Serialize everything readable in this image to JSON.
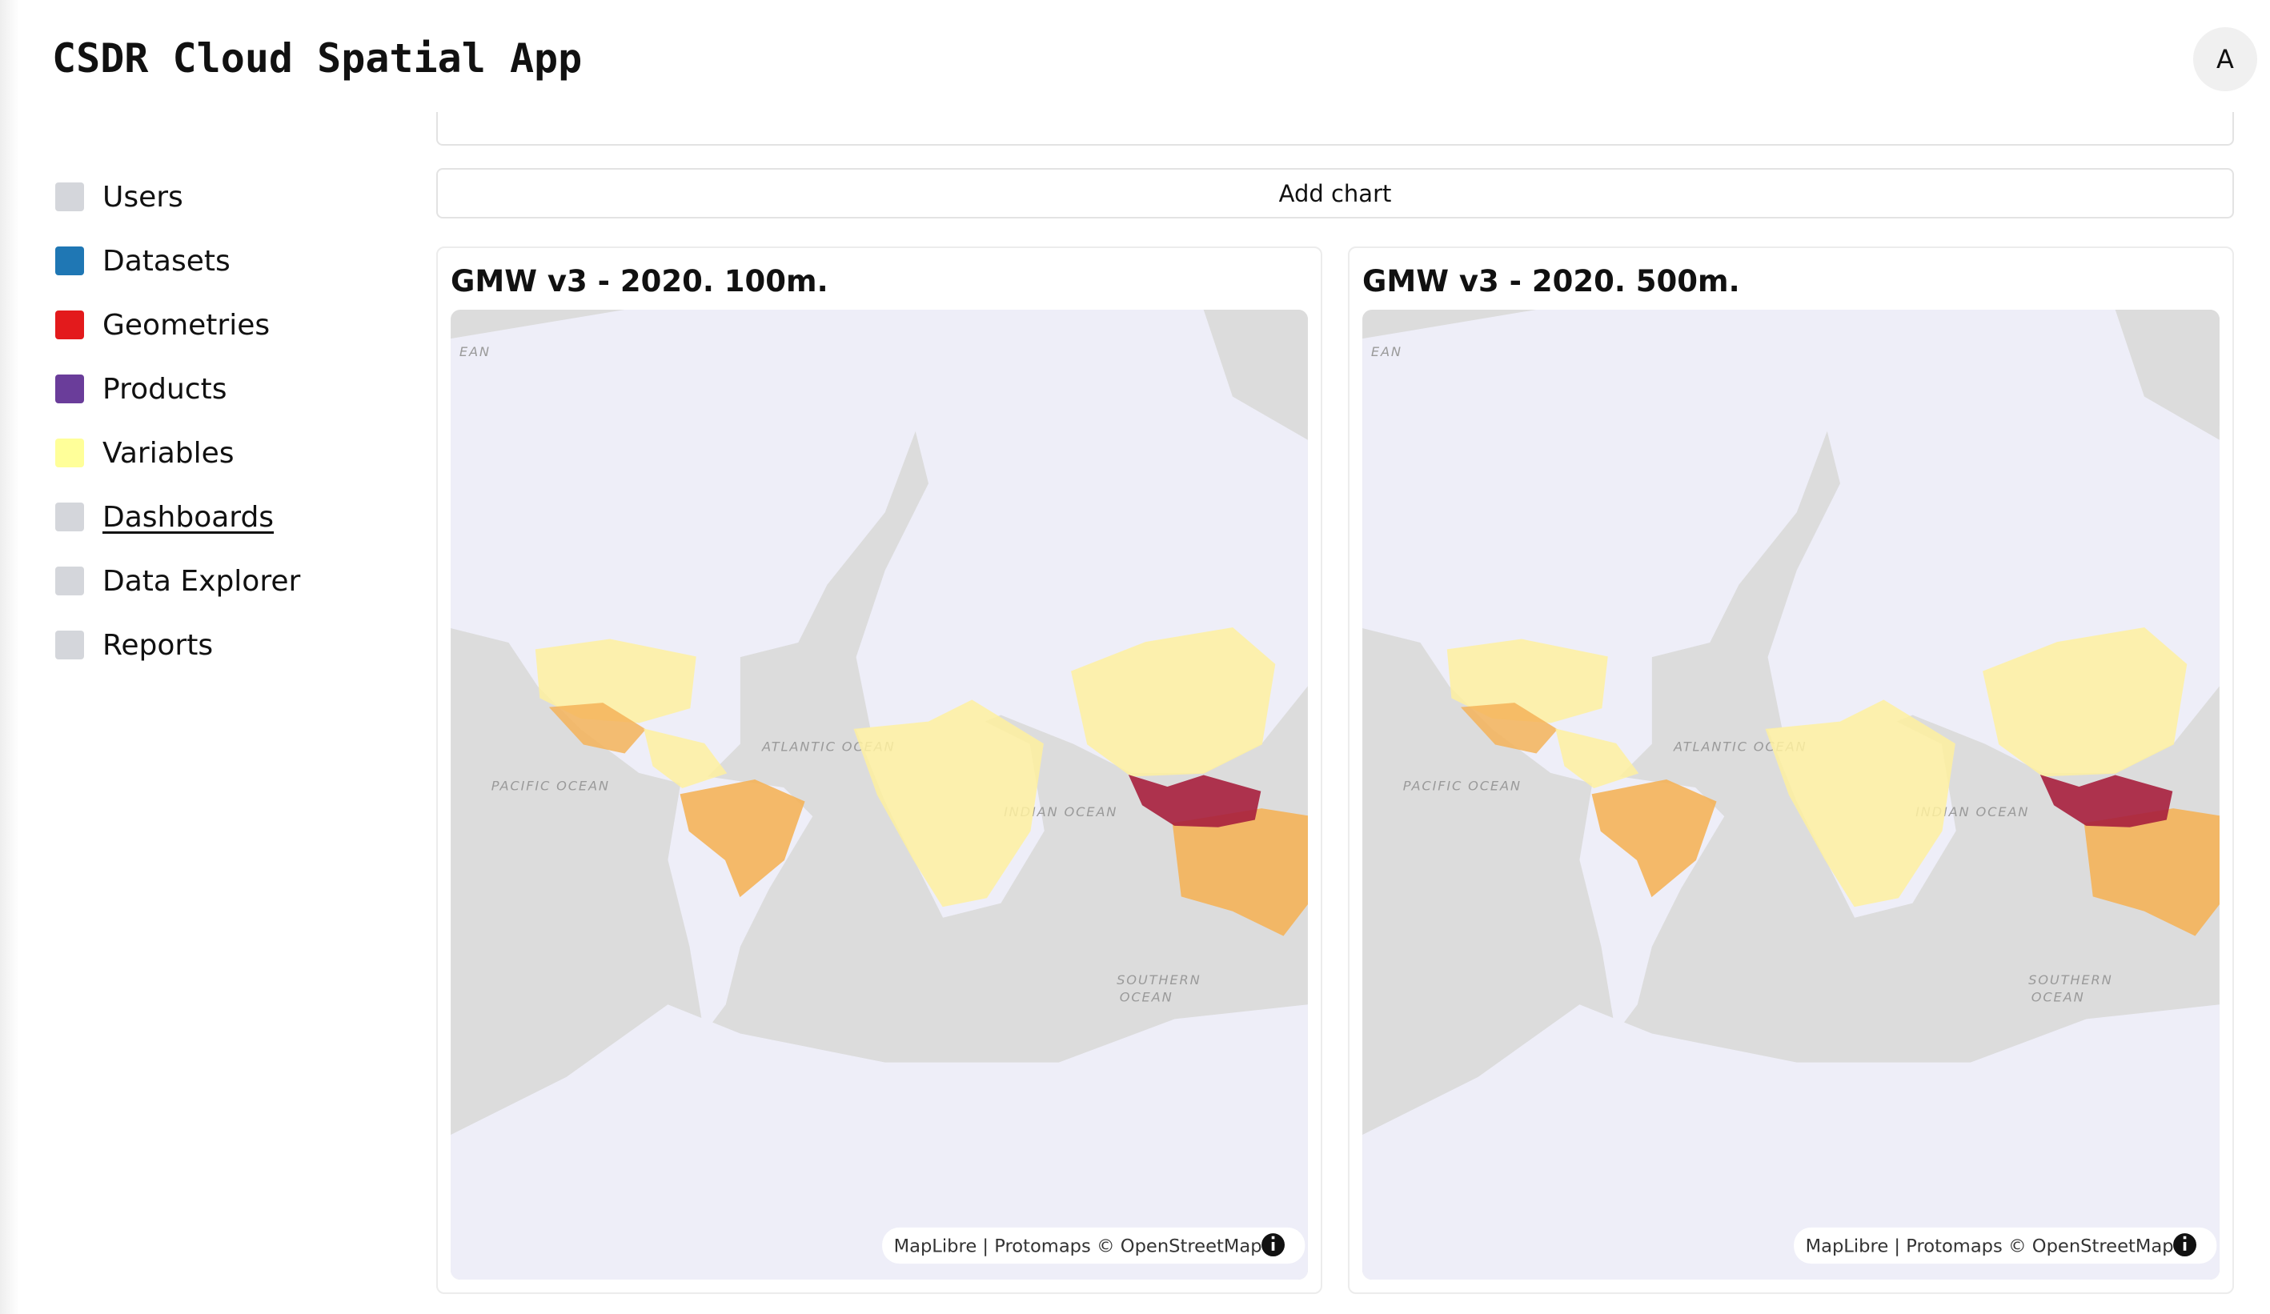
{
  "header": {
    "title": "CSDR Cloud Spatial App",
    "avatar": "A"
  },
  "sidebar": {
    "items": [
      "Users",
      "Datasets",
      "Geometries",
      "Products",
      "Variables",
      "Dashboards",
      "Data Explorer",
      "Reports"
    ]
  },
  "button": "Add chart",
  "cards": [
    {
      "title": "GMW v3 - 2020. 100m.",
      "map_labels": [
        "EAN",
        "PACIFIC OCEAN",
        "ATLANTIC OCEAN",
        "INDIAN OCEAN",
        "SOUTHERN",
        "OCEAN"
      ],
      "attribution": "MapLibre | Protomaps © OpenStreetMap"
    },
    {
      "title": "GMW v3 - 2020. 500m.",
      "map_labels": [
        "EAN",
        "PACIFIC OCEAN",
        "ATLANTIC OCEAN",
        "INDIAN OCEAN",
        "SOUTHERN",
        "OCEAN"
      ],
      "attribution": "MapLibre | Protomaps © OpenStreetMap"
    }
  ]
}
